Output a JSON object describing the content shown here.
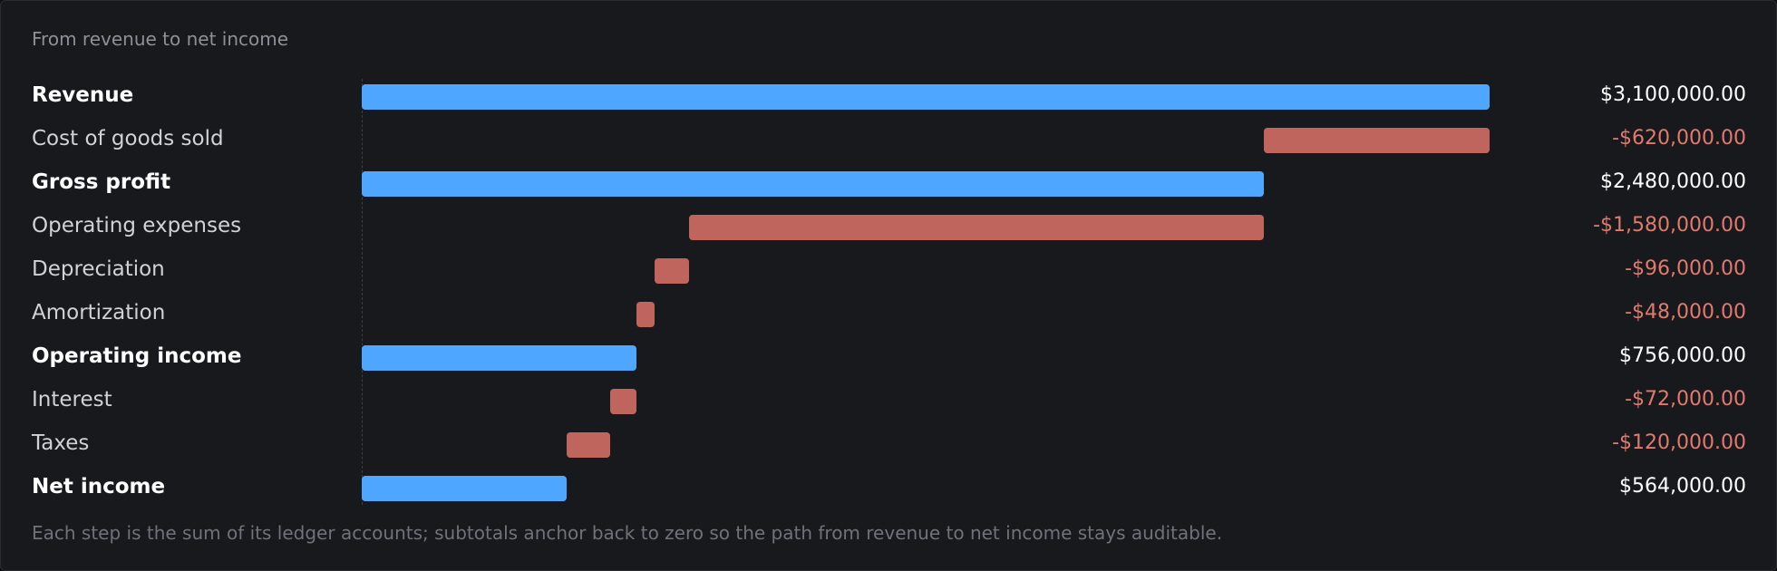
{
  "subtitle": "From revenue to net income",
  "footnote": "Each step is the sum of its ledger accounts; subtotals anchor back to zero so the path from revenue to net income stays auditable.",
  "colors": {
    "total": "#4fa6ff",
    "negative": "#c0655d",
    "negative_text": "#e07a6c"
  },
  "chart_data": {
    "type": "bar",
    "orientation": "horizontal",
    "variant": "waterfall",
    "categories": [
      "Revenue",
      "Cost of goods sold",
      "Gross profit",
      "Operating expenses",
      "Depreciation",
      "Amortization",
      "Operating income",
      "Interest",
      "Taxes",
      "Net income"
    ],
    "steps": [
      {
        "label": "Revenue",
        "kind": "total",
        "value": 3100000,
        "display": "$3,100,000.00"
      },
      {
        "label": "Cost of goods sold",
        "kind": "delta",
        "value": -620000,
        "display": "-$620,000.00"
      },
      {
        "label": "Gross profit",
        "kind": "total",
        "value": 2480000,
        "display": "$2,480,000.00"
      },
      {
        "label": "Operating expenses",
        "kind": "delta",
        "value": -1580000,
        "display": "-$1,580,000.00"
      },
      {
        "label": "Depreciation",
        "kind": "delta",
        "value": -96000,
        "display": "-$96,000.00"
      },
      {
        "label": "Amortization",
        "kind": "delta",
        "value": -48000,
        "display": "-$48,000.00"
      },
      {
        "label": "Operating income",
        "kind": "total",
        "value": 756000,
        "display": "$756,000.00"
      },
      {
        "label": "Interest",
        "kind": "delta",
        "value": -72000,
        "display": "-$72,000.00"
      },
      {
        "label": "Taxes",
        "kind": "delta",
        "value": -120000,
        "display": "-$120,000.00"
      },
      {
        "label": "Net income",
        "kind": "total",
        "value": 564000,
        "display": "$564,000.00"
      }
    ],
    "xlim": [
      0,
      3100000
    ]
  }
}
